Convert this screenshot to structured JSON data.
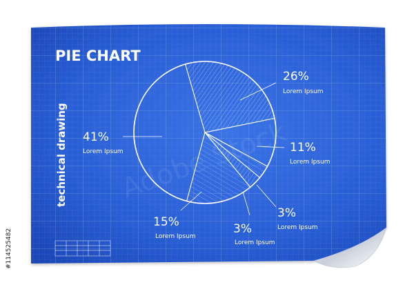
{
  "chart_data": {
    "type": "pie",
    "title": "PIE CHART",
    "subtitle": "technical drawing",
    "slices": [
      {
        "label": "26%",
        "value": 26,
        "caption": "Lorem Ipsum"
      },
      {
        "label": "11%",
        "value": 11,
        "caption": "Lorem Ipsum"
      },
      {
        "label": "3%",
        "value": 3,
        "caption": "Lorem Ipsum"
      },
      {
        "label": "3%",
        "value": 3,
        "caption": "Lorem Ipsum"
      },
      {
        "label": "15%",
        "value": 15,
        "caption": "Lorem Ipsum"
      },
      {
        "label": "41%",
        "value": 41,
        "caption": "Lorem Ipsum"
      }
    ]
  },
  "stock_id": "#114525482",
  "watermark": "Adobe Stock",
  "colors": {
    "paper": "#2a5fd6",
    "paper_dark": "#1c45b4",
    "line": "#ffffff",
    "grid": "#5f8ae6"
  }
}
